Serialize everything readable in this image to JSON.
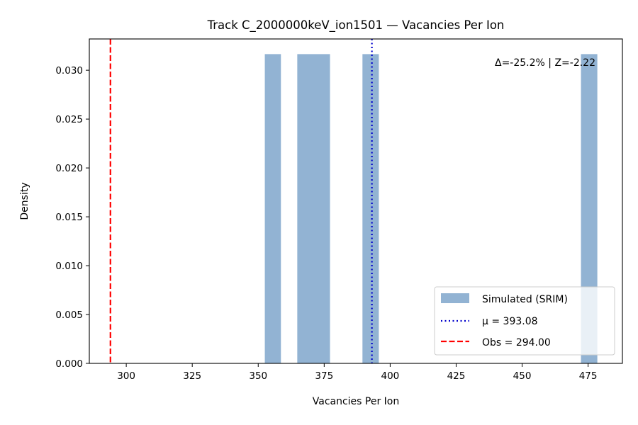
{
  "chart_data": {
    "type": "bar",
    "title": "Track C_2000000keV_ion1501 — Vacancies Per Ion",
    "xlabel": "Vacancies Per Ion",
    "ylabel": "Density",
    "xlim": [
      286,
      488
    ],
    "ylim": [
      0,
      0.0332
    ],
    "xticks": [
      300,
      325,
      350,
      375,
      400,
      425,
      450,
      475
    ],
    "yticks": [
      0.0,
      0.005,
      0.01,
      0.015,
      0.02,
      0.025,
      0.03
    ],
    "xtick_labels": [
      "300",
      "325",
      "350",
      "375",
      "400",
      "425",
      "450",
      "475"
    ],
    "ytick_labels": [
      "0.000",
      "0.005",
      "0.010",
      "0.015",
      "0.020",
      "0.025",
      "0.030"
    ],
    "histogram": {
      "name": "Simulated (SRIM)",
      "color": "#92b3d3",
      "bins": [
        {
          "x0": 352.5,
          "x1": 358.6,
          "density": 0.03165
        },
        {
          "x0": 364.8,
          "x1": 377.2,
          "density": 0.03165
        },
        {
          "x0": 389.5,
          "x1": 395.7,
          "density": 0.03165
        },
        {
          "x0": 472.3,
          "x1": 478.5,
          "density": 0.03165
        }
      ]
    },
    "lines": [
      {
        "name": "μ = 393.08",
        "x": 393.08,
        "color": "#0000cc",
        "style": "dotted"
      },
      {
        "name": "Obs = 294.00",
        "x": 294.0,
        "color": "#ff0000",
        "style": "dashed"
      }
    ],
    "annotation": "Δ=-25.2% | Z=-2.22",
    "legend": {
      "position": "lower-right",
      "entries": [
        "Simulated (SRIM)",
        "μ = 393.08",
        "Obs = 294.00"
      ]
    },
    "grid": false
  }
}
